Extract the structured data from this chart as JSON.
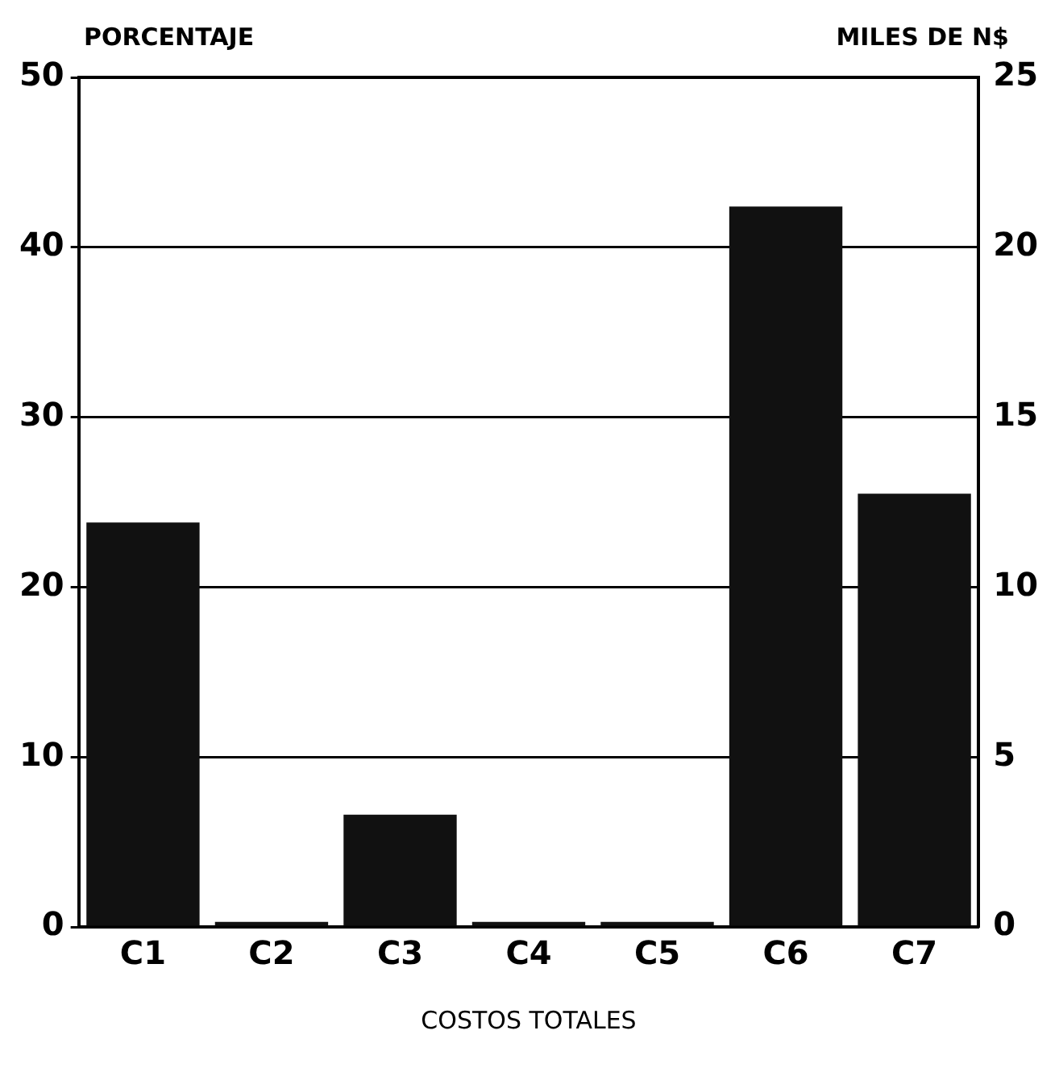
{
  "chart_data": {
    "type": "bar",
    "xlabel": "COSTOS TOTALES",
    "ylabel": "PORCENTAJE",
    "y2label": "MILES DE N$",
    "categories": [
      "C1",
      "C2",
      "C3",
      "C4",
      "C5",
      "C6",
      "C7"
    ],
    "values": [
      23.8,
      0.3,
      6.6,
      0.3,
      0.3,
      42.4,
      25.5
    ],
    "color": "#111111",
    "ylim": [
      0,
      50
    ],
    "yticks": [
      0,
      10,
      20,
      30,
      40,
      50
    ],
    "y2lim": [
      0,
      25
    ],
    "y2ticks": [
      0,
      5,
      10,
      15,
      20,
      25
    ],
    "grid": "y",
    "legend": false
  }
}
